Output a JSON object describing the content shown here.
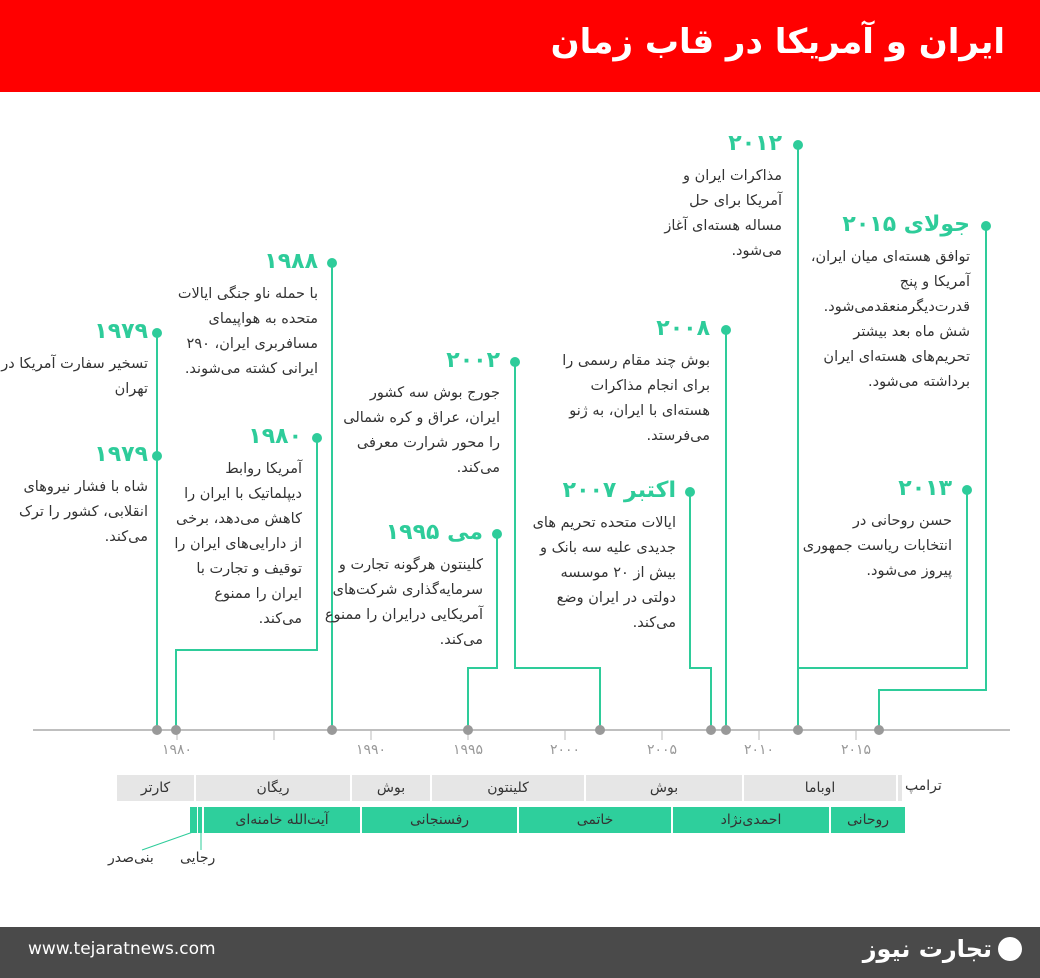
{
  "title": "ایران و آمریکا در قاب زمان",
  "accent": "#2ecc9a",
  "events": [
    {
      "year": "۱۹۷۹",
      "text": "تسخیر سفارت آمریکا در تهران"
    },
    {
      "year": "۱۹۷۹",
      "text": "شاه با فشار نیروهای انقلابی، کشور را ترک می‌کند."
    },
    {
      "year": "۱۹۸۸",
      "text": "با حمله ناو جنگی ایالات متحده به هواپیمای مسافربری ایران، ۲۹۰ ایرانی کشته می‌شوند."
    },
    {
      "year": "۱۹۸۰",
      "text": "آمریکا روابط دیپلماتیک با ایران را کاهش می‌دهد، برخی از دارایی‌های ایران را توقیف و تجارت با ایران را ممنوع می‌کند."
    },
    {
      "year": "۲۰۰۲",
      "text": "جورج بوش سه کشور ایران، عراق و کره شمالی را محور شرارت معرفی می‌کند."
    },
    {
      "year": "می ۱۹۹۵",
      "text": "کلینتون هرگونه تجارت و سرمایه‌گذاری شرکت‌های آمریکایی درایران را ممنوع می‌کند."
    },
    {
      "year": "۲۰۰۸",
      "text": "بوش چند مقام رسمی را برای انجام مذاکرات هسته‌ای با ایران، به ژنو می‌فرستد."
    },
    {
      "year": "اکتبر ۲۰۰۷",
      "text": "ایالات متحده تحریم های جدیدی علیه سه بانک و بیش از ۲۰ موسسه دولتی در ایران وضع می‌کند."
    },
    {
      "year": "۲۰۱۲",
      "text": "مذاکرات ایران و آمریکا برای حل مساله هسته‌ای آغاز می‌شود."
    },
    {
      "year": "جولای ۲۰۱۵",
      "text": "توافق هسته‌ای میان ایران، آمریکا و پنج قدرت‌دیگرمنعقد‌می‌شود. شش ماه بعد بیشتر تحریم‌های هسته‌ای ایران برداشته می‌شود."
    },
    {
      "year": "۲۰۱۳",
      "text": "حسن روحانی در انتخابات ریاست جمهوری پیروز می‌شود."
    }
  ],
  "axis_ticks": [
    "۱۹۸۰",
    "۱۹۹۰",
    "۱۹۹۵",
    "۲۰۰۰",
    "۲۰۰۵",
    "۲۰۱۰",
    "۲۰۱۵"
  ],
  "us_presidents": [
    "کارتر",
    "ریگان",
    "بوش",
    "کلینتون",
    "بوش",
    "اوباما",
    "ترامپ"
  ],
  "iran_presidents": [
    "آیت‌الله خامنه‌ای",
    "رفسنجانی",
    "خاتمی",
    "احمدی‌نژاد",
    "روحانی",
    "بنی‌صدر",
    "رجایی"
  ],
  "footer": {
    "url": "www.tejaratnews.com",
    "logo": "تجارت نیوز"
  }
}
